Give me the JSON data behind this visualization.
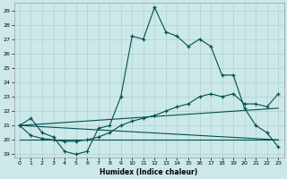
{
  "xlabel": "Humidex (Indice chaleur)",
  "xlim": [
    -0.5,
    23.5
  ],
  "ylim": [
    18.8,
    29.5
  ],
  "yticks": [
    19,
    20,
    21,
    22,
    23,
    24,
    25,
    26,
    27,
    28,
    29
  ],
  "xticks": [
    0,
    1,
    2,
    3,
    4,
    5,
    6,
    7,
    8,
    9,
    10,
    11,
    12,
    13,
    14,
    15,
    16,
    17,
    18,
    19,
    20,
    21,
    22,
    23
  ],
  "background_color": "#cce8e8",
  "grid_color": "#b0d0d0",
  "line_color": "#005050",
  "line1_y": [
    21.0,
    21.5,
    20.5,
    20.2,
    19.2,
    19.0,
    19.2,
    20.8,
    21.0,
    23.0,
    27.2,
    27.0,
    29.2,
    27.5,
    27.2,
    26.5,
    27.0,
    26.5,
    24.5,
    24.5,
    22.2,
    21.0,
    20.5,
    19.5
  ],
  "line2_y": [
    21.0,
    20.3,
    20.1,
    20.0,
    19.9,
    19.9,
    20.0,
    20.2,
    20.5,
    21.0,
    21.3,
    21.5,
    21.7,
    22.0,
    22.3,
    22.5,
    23.0,
    23.2,
    23.0,
    23.2,
    22.5,
    22.5,
    22.3,
    23.2
  ],
  "line3_y": [
    21.0,
    20.0
  ],
  "line4_y": [
    21.0,
    22.2
  ],
  "line5_y": [
    20.0,
    20.0
  ]
}
